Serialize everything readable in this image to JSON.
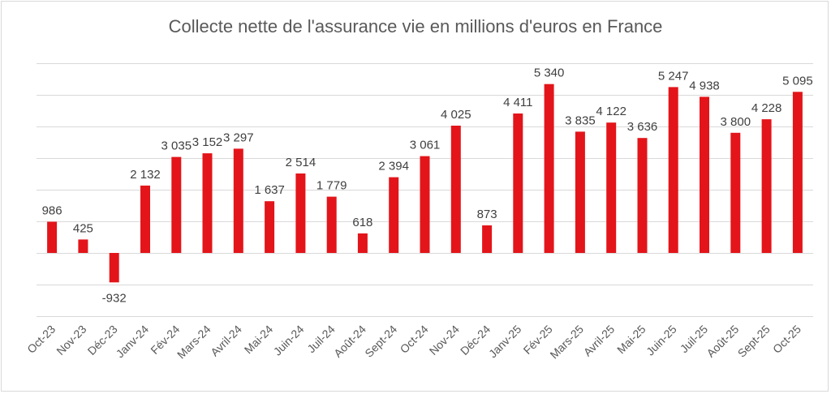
{
  "chart_data": {
    "type": "bar",
    "title": "Collecte nette de l'assurance vie en millions d'euros en France",
    "xlabel": "",
    "ylabel": "",
    "ylim": [
      -2000,
      6000
    ],
    "grid": true,
    "categories": [
      "Oct-23",
      "Nov-23",
      "Déc-23",
      "Janv-24",
      "Fév-24",
      "Mars-24",
      "Avril-24",
      "Mai-24",
      "Juin-24",
      "Juil-24",
      "Août-24",
      "Sept-24",
      "Oct-24",
      "Nov-24",
      "Déc-24",
      "Janv-25",
      "Fév-25",
      "Mars-25",
      "Avril-25",
      "Mai-25",
      "Juin-25",
      "Juil-25",
      "Août-25",
      "Sept-25",
      "Oct-25"
    ],
    "values": [
      986,
      425,
      -932,
      2132,
      3035,
      3152,
      3297,
      1637,
      2514,
      1779,
      618,
      2394,
      3061,
      4025,
      873,
      4411,
      5340,
      3835,
      4122,
      3636,
      5247,
      4938,
      3800,
      4228,
      5095
    ],
    "data_labels": [
      "986",
      "425",
      "-932",
      "2 132",
      "3 035",
      "3 152",
      "3 297",
      "1 637",
      "2 514",
      "1 779",
      "618",
      "2 394",
      "3 061",
      "4 025",
      "873",
      "4 411",
      "5 340",
      "3 835",
      "4 122",
      "3 636",
      "5 247",
      "4 938",
      "3 800",
      "4 228",
      "5 095"
    ],
    "colors": {
      "bar": "#e3151a"
    }
  }
}
